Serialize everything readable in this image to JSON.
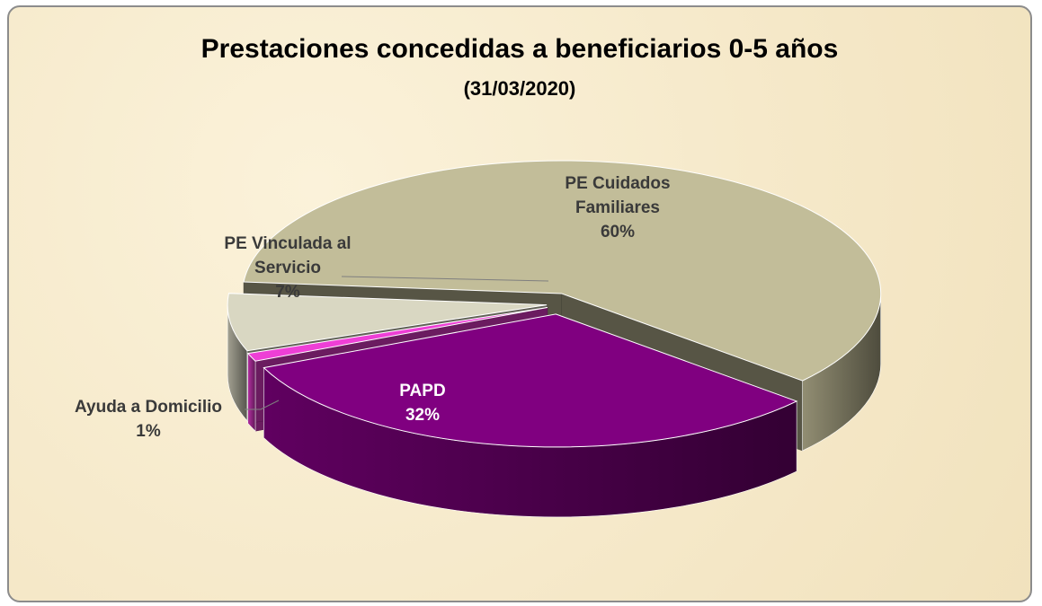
{
  "chart_data": {
    "type": "pie3d",
    "title": "Prestaciones concedidas a beneficiarios 0-5 años",
    "subtitle": "(31/03/2020)",
    "categories": [
      "PE Cuidados Familiares",
      "PAPD",
      "Ayuda a Domicilio",
      "PE Vinculada al Servicio"
    ],
    "values": [
      60,
      32,
      1,
      7
    ],
    "value_labels": [
      "60%",
      "32%",
      "1%",
      "7%"
    ],
    "colors": [
      "#c2bd99",
      "#800080",
      "#ee3fd6",
      "#d9d7c2"
    ]
  }
}
